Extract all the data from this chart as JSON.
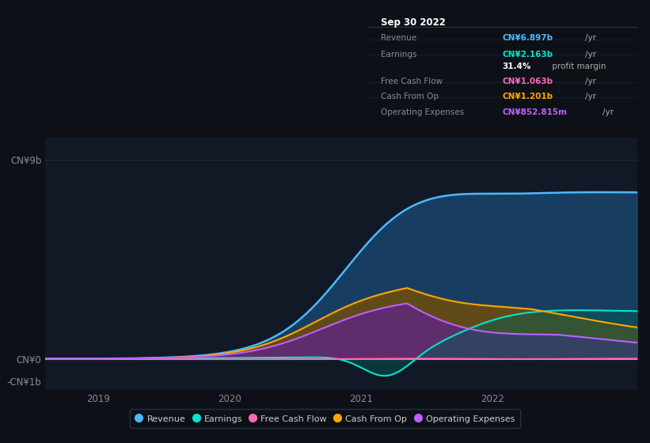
{
  "bg_color": "#0d1117",
  "plot_bg_color": "#111927",
  "box_bg_color": "#080c10",
  "title_box": {
    "date": "Sep 30 2022",
    "rows": [
      {
        "label": "Revenue",
        "value": "CN¥6.897b",
        "unit": "/yr",
        "value_color": "#4db8ff"
      },
      {
        "label": "Earnings",
        "value": "CN¥2.163b",
        "unit": "/yr",
        "value_color": "#00e5cc"
      },
      {
        "label": "",
        "value": "31.4%",
        "unit": " profit margin",
        "value_color": "#ffffff"
      },
      {
        "label": "Free Cash Flow",
        "value": "CN¥1.063b",
        "unit": "/yr",
        "value_color": "#ff69b4"
      },
      {
        "label": "Cash From Op",
        "value": "CN¥1.201b",
        "unit": "/yr",
        "value_color": "#ffa500"
      },
      {
        "label": "Operating Expenses",
        "value": "CN¥852.815m",
        "unit": "/yr",
        "value_color": "#bf5fff"
      }
    ]
  },
  "y_labels": [
    "CN¥9b",
    "CN¥0",
    "-CN¥1b"
  ],
  "y_ticks": [
    9000000000,
    0,
    -1000000000
  ],
  "x_ticks": [
    2019,
    2020,
    2021,
    2022
  ],
  "ylim": [
    -1400000000,
    10000000000
  ],
  "xlim": [
    2018.6,
    2023.1
  ],
  "legend": [
    {
      "label": "Revenue",
      "color": "#4db8ff"
    },
    {
      "label": "Earnings",
      "color": "#00e5cc"
    },
    {
      "label": "Free Cash Flow",
      "color": "#ff69b4"
    },
    {
      "label": "Cash From Op",
      "color": "#ffa500"
    },
    {
      "label": "Operating Expenses",
      "color": "#bf5fff"
    }
  ],
  "revenue_color": "#4db8ff",
  "revenue_fill": "#1a4f7a",
  "earnings_color": "#00e5cc",
  "earnings_fill": "#005f55",
  "fcf_color": "#ff69b4",
  "fcf_fill": "#7a2244",
  "cashop_color": "#ffa500",
  "cashop_fill": "#7a5000",
  "opex_color": "#bf5fff",
  "opex_fill": "#5f2090"
}
